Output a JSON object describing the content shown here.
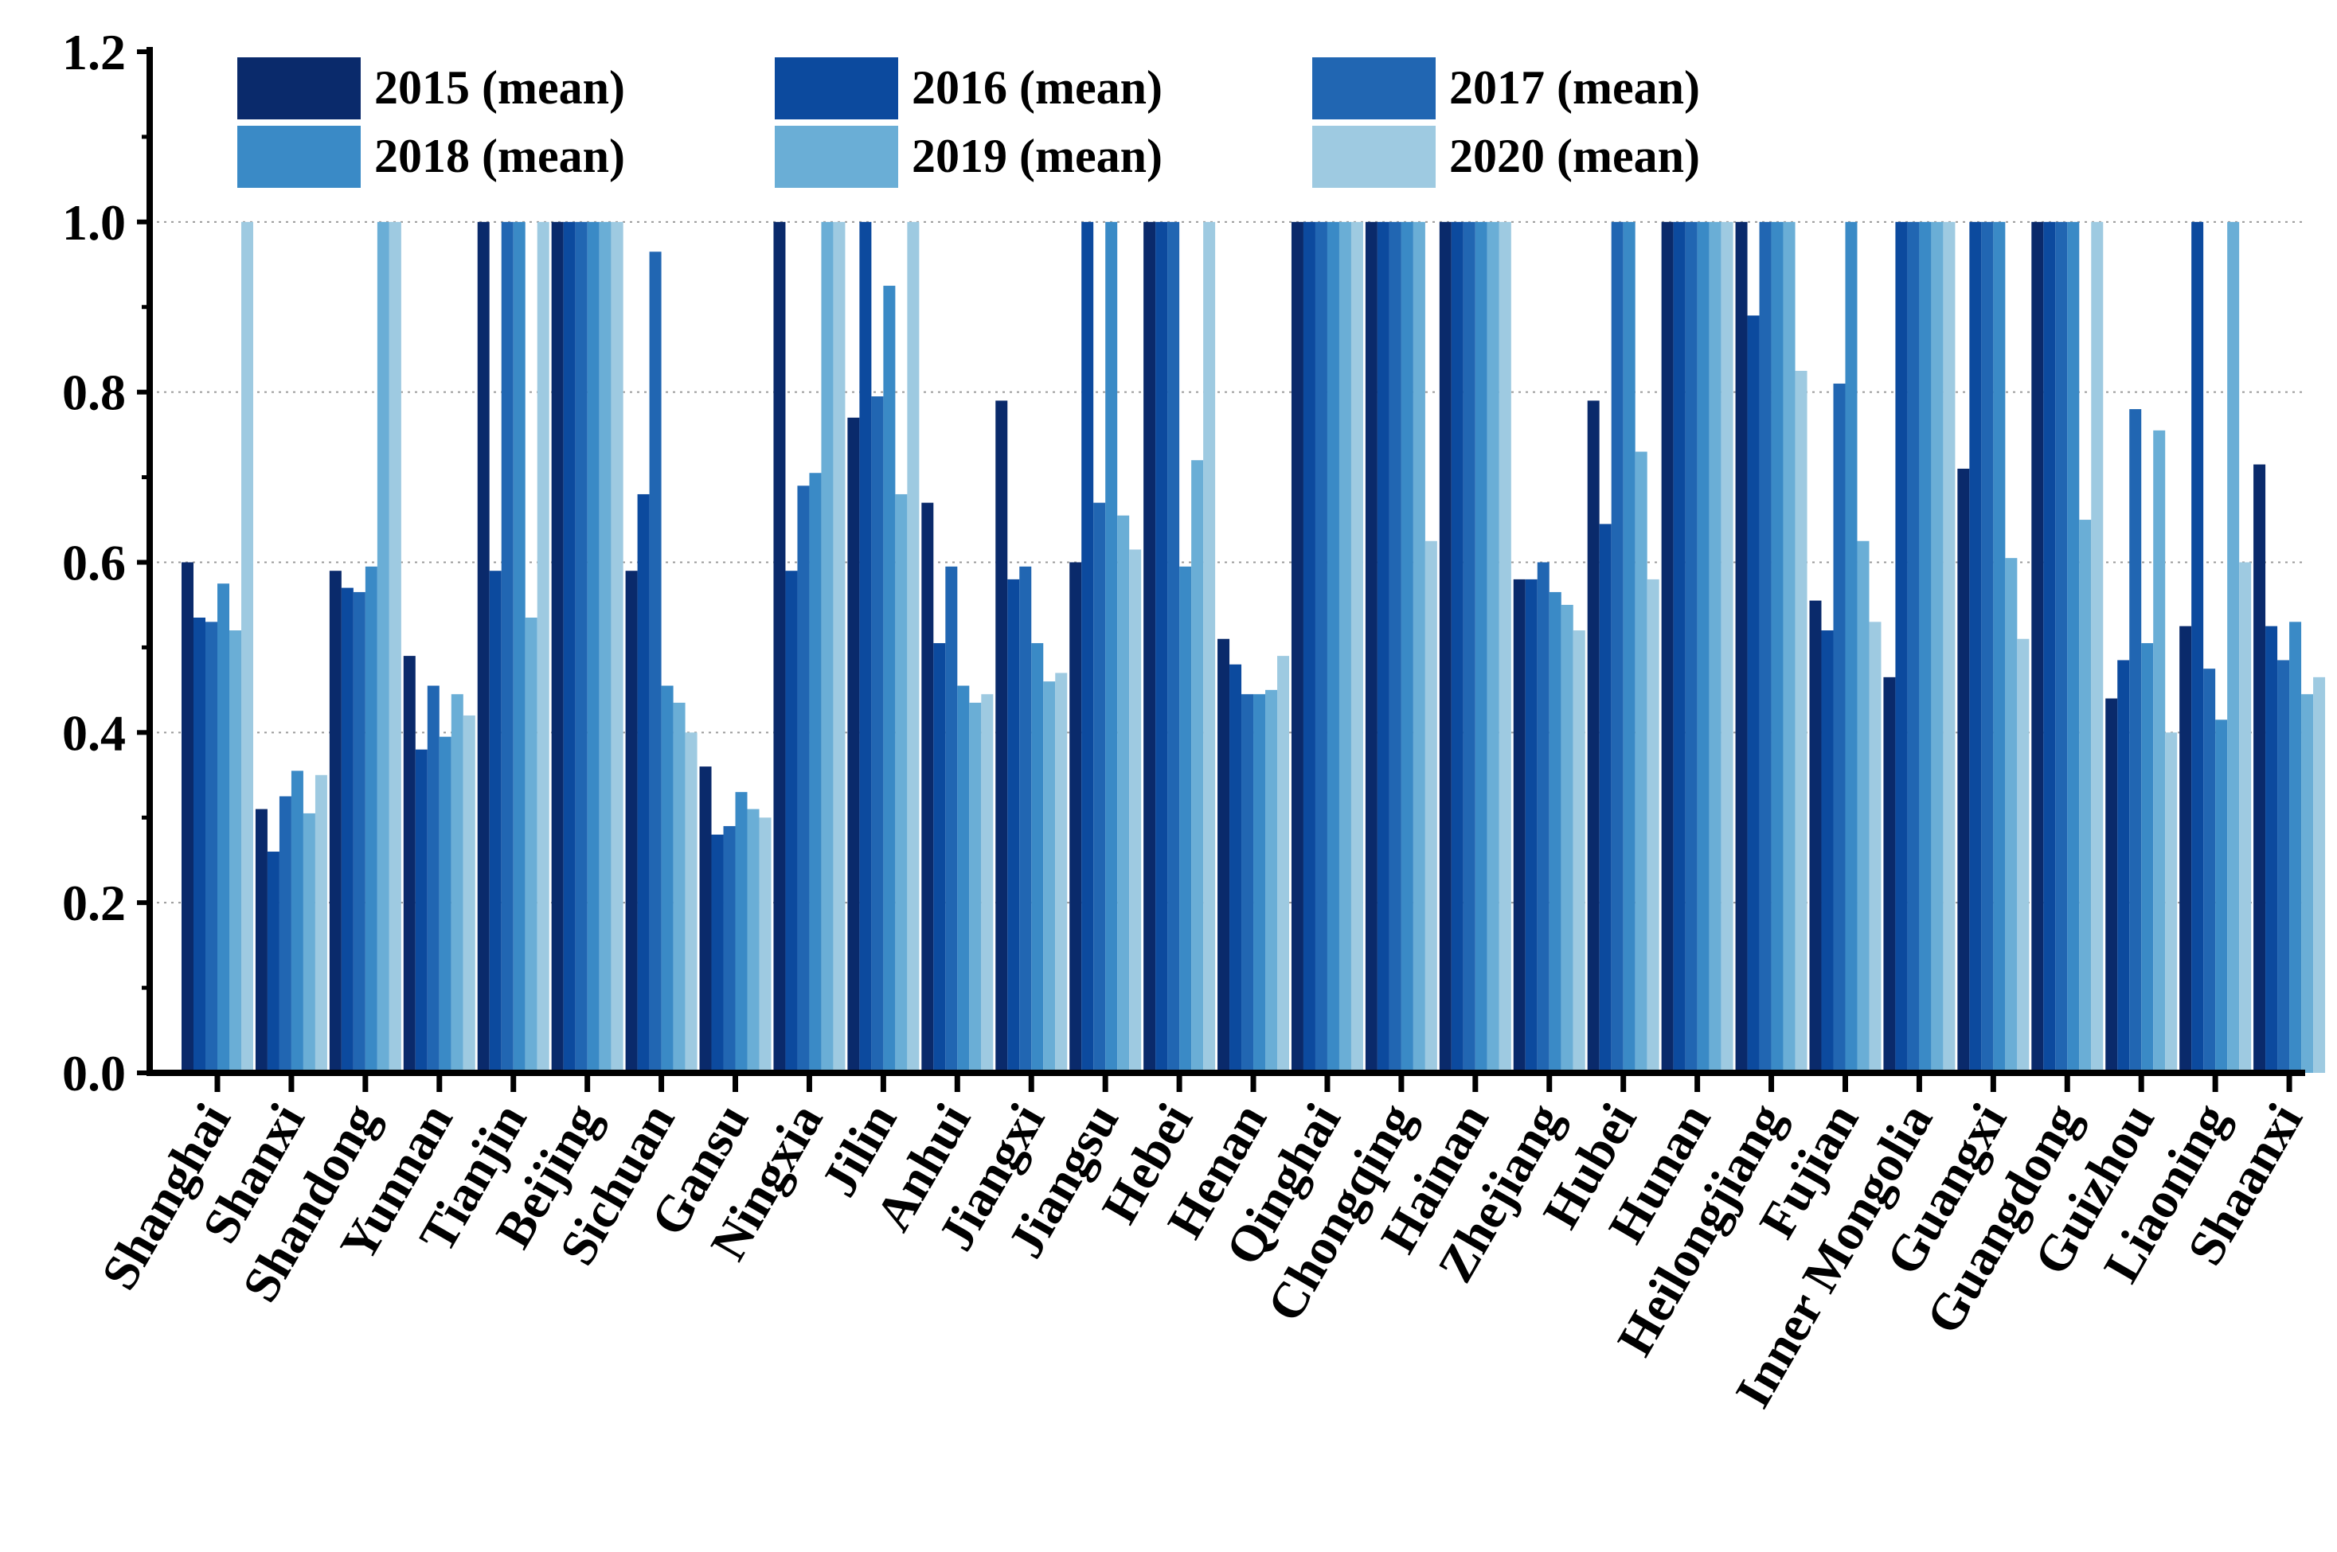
{
  "chart_data": {
    "type": "bar",
    "title": "",
    "xlabel": "",
    "ylabel": "",
    "ylim": [
      0,
      1.2
    ],
    "yticks": [
      "0.0",
      "0.2",
      "0.4",
      "0.6",
      "0.8",
      "1.0",
      "1.2"
    ],
    "grid": "horizontal dotted",
    "legend_position": "top",
    "categories": [
      "Shanghai",
      "Shanxi",
      "Shandong",
      "Yunnan",
      "Tianjin",
      "Beijing",
      "Sichuan",
      "Gansu",
      "Ningxia",
      "Jilin",
      "Anhui",
      "Jiangxi",
      "Jiangsu",
      "Hebei",
      "Henan",
      "Qinghai",
      "Chongqing",
      "Hainan",
      "Zhejiang",
      "Hubei",
      "Hunan",
      "Heilongjiang",
      "Fujian",
      "Inner Mongolia",
      "Guangxi",
      "Guangdong",
      "Guizhou",
      "Liaoning",
      "Shaanxi"
    ],
    "series": [
      {
        "name": "2015 (mean)",
        "color": "#0a2a6b",
        "values": [
          0.6,
          0.31,
          0.59,
          0.49,
          1.0,
          1.0,
          0.59,
          0.36,
          1.0,
          0.77,
          0.67,
          0.79,
          0.6,
          1.0,
          0.51,
          1.0,
          1.0,
          1.0,
          0.58,
          0.79,
          1.0,
          1.0,
          0.555,
          0.465,
          0.71,
          1.0,
          0.44,
          0.525,
          0.715
        ]
      },
      {
        "name": "2016 (mean)",
        "color": "#0c4a9e",
        "values": [
          0.535,
          0.26,
          0.57,
          0.38,
          0.59,
          1.0,
          0.68,
          0.28,
          0.59,
          1.0,
          0.505,
          0.58,
          1.0,
          1.0,
          0.48,
          1.0,
          1.0,
          1.0,
          0.58,
          0.645,
          1.0,
          0.89,
          0.52,
          1.0,
          1.0,
          1.0,
          0.485,
          1.0,
          0.525
        ]
      },
      {
        "name": "2017 (mean)",
        "color": "#2166b2",
        "values": [
          0.53,
          0.325,
          0.565,
          0.455,
          1.0,
          1.0,
          0.965,
          0.29,
          0.69,
          0.795,
          0.595,
          0.595,
          0.67,
          1.0,
          0.445,
          1.0,
          1.0,
          1.0,
          0.6,
          1.0,
          1.0,
          1.0,
          0.81,
          1.0,
          1.0,
          1.0,
          0.78,
          0.475,
          0.485
        ]
      },
      {
        "name": "2018 (mean)",
        "color": "#3a8ac6",
        "values": [
          0.575,
          0.355,
          0.595,
          0.395,
          1.0,
          1.0,
          0.455,
          0.33,
          0.705,
          0.925,
          0.455,
          0.505,
          1.0,
          0.595,
          0.445,
          1.0,
          1.0,
          1.0,
          0.565,
          1.0,
          1.0,
          1.0,
          1.0,
          1.0,
          1.0,
          1.0,
          0.505,
          0.415,
          0.53
        ]
      },
      {
        "name": "2019 (mean)",
        "color": "#6aaed6",
        "values": [
          0.52,
          0.305,
          1.0,
          0.445,
          0.535,
          1.0,
          0.435,
          0.31,
          1.0,
          0.68,
          0.435,
          0.46,
          0.655,
          0.72,
          0.45,
          1.0,
          1.0,
          1.0,
          0.55,
          0.73,
          1.0,
          1.0,
          0.625,
          1.0,
          0.605,
          0.65,
          0.755,
          1.0,
          0.445
        ]
      },
      {
        "name": "2020 (mean)",
        "color": "#9ecae1",
        "values": [
          1.0,
          0.35,
          1.0,
          0.42,
          1.0,
          1.0,
          0.4,
          0.3,
          1.0,
          1.0,
          0.445,
          0.47,
          0.615,
          1.0,
          0.49,
          1.0,
          0.625,
          1.0,
          0.52,
          0.58,
          1.0,
          0.825,
          0.53,
          1.0,
          0.51,
          1.0,
          0.4,
          0.6,
          0.465
        ]
      }
    ]
  }
}
